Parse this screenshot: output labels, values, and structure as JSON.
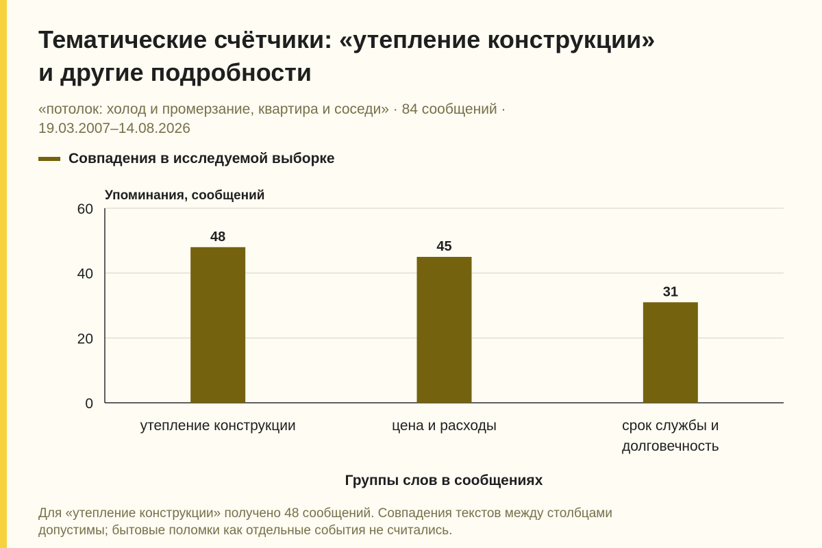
{
  "page": {
    "title_lines": [
      "Тематические счётчики: «утепление конструкции»",
      "и другие подробности"
    ],
    "subtitle_lines": [
      "«потолок: холод и промерзание, квартира и соседи» · 84 сообщений ·",
      "19.03.2007–14.08.2026"
    ],
    "legend": {
      "label": "Совпадения в исследуемой выборке",
      "color": "#75620f"
    },
    "footnote_lines": [
      "Для «утепление конструкции» получено 48 сообщений. Совпадения текстов между столбцами",
      "допустимы; бытовые поломки как отдельные события не считались."
    ],
    "colors": {
      "background": "#fefcf3",
      "accent": "#f6d33c",
      "bar": "#75620f",
      "muted_text": "#77704a"
    }
  },
  "chart_data": {
    "type": "bar",
    "categories": [
      [
        "утепление конструкции"
      ],
      [
        "цена и расходы"
      ],
      [
        "срок службы и",
        "долговечность"
      ]
    ],
    "series": [
      {
        "name": "Совпадения в исследуемой выборке",
        "values": [
          48,
          45,
          31
        ],
        "color": "#75620f"
      }
    ],
    "data_labels": [
      "48",
      "45",
      "31"
    ],
    "xlabel": "Группы слов в сообщениях",
    "ylabel": "Упоминания, сообщений",
    "ylim": [
      0,
      60
    ],
    "yticks": [
      0,
      20,
      40,
      60
    ],
    "grid": true,
    "legend_position": "top-left"
  }
}
